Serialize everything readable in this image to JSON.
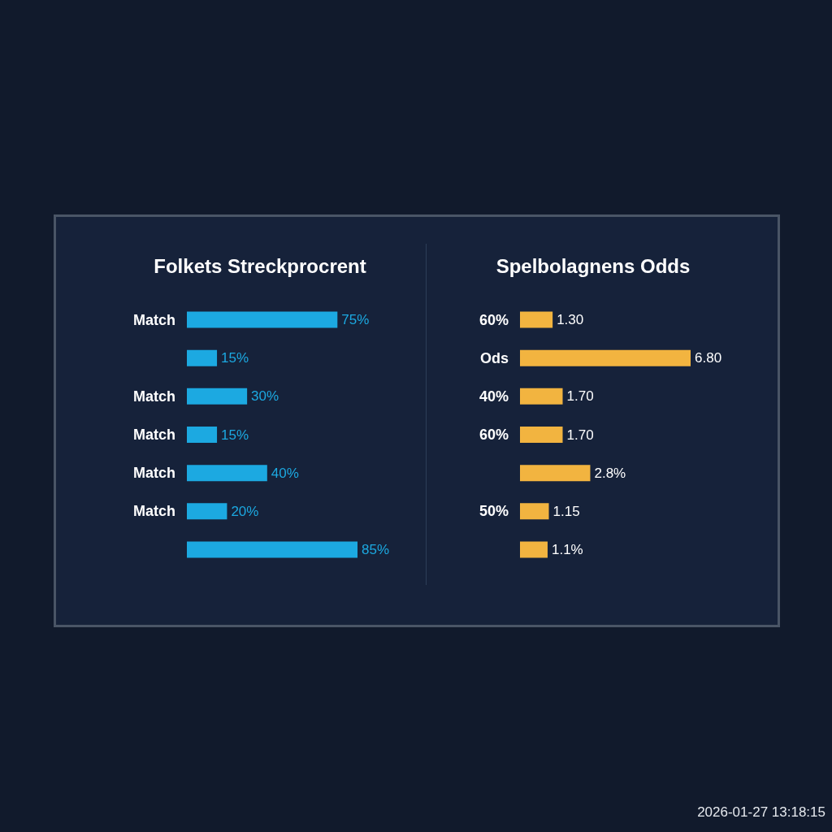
{
  "chart_data": [
    {
      "type": "bar",
      "orientation": "horizontal",
      "title": "Folkets Streckprocrent",
      "categories": [
        "Match",
        null,
        "Match",
        "Match",
        "Match",
        "Match",
        null
      ],
      "values": [
        75,
        15,
        30,
        15,
        40,
        20,
        85
      ],
      "value_labels": [
        "75%",
        "15%",
        "30%",
        "15%",
        "40%",
        "20%",
        "85%"
      ],
      "color": "#1ca9e1"
    },
    {
      "type": "bar",
      "orientation": "horizontal",
      "title": "Spelbolagnens Odds",
      "categories": [
        "60%",
        "Ods",
        "40%",
        "60%",
        null,
        "50%",
        null
      ],
      "values": [
        1.3,
        6.8,
        1.7,
        1.7,
        2.8,
        1.15,
        1.1
      ],
      "value_labels": [
        "1.30",
        "6.80",
        "1.70",
        "1.70",
        "2.8%",
        "1.15",
        "1.1%"
      ],
      "color": "#f2b440",
      "annotations": [
        "2026-01-27 13:18:15"
      ]
    }
  ]
}
